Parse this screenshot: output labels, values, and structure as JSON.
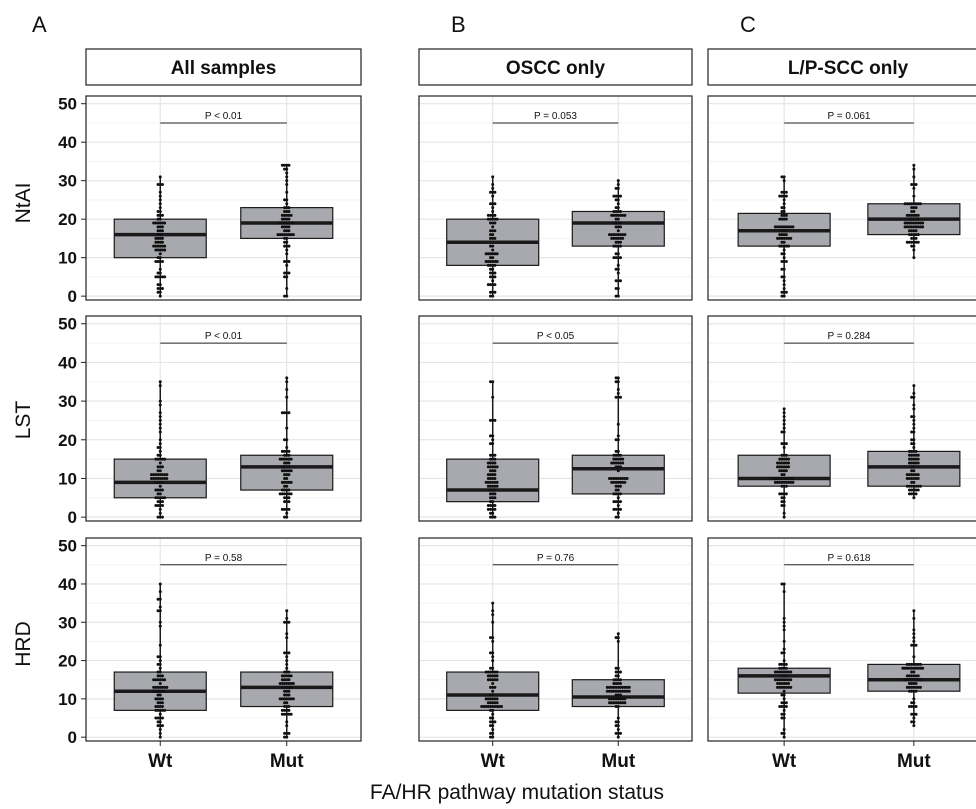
{
  "panel_letters": [
    "A",
    "B",
    "C"
  ],
  "column_titles": [
    "All samples",
    "OSCC only",
    "L/P-SCC only"
  ],
  "row_titles": [
    "NtAI",
    "LST",
    "HRD"
  ],
  "x_axis_title": "FA/HR pathway mutation status",
  "colors": {
    "box_fill": "#a8a9ae",
    "box_stroke": "#1a1a1a",
    "median": "#1a1a1a",
    "points": "#111111",
    "grid_major": "#e6e6e6",
    "grid_minor": "#f3f3f3",
    "panel_border": "#222222"
  },
  "chart_data": {
    "type": "boxplot",
    "categories": [
      "Wt",
      "Mut"
    ],
    "y_ticks": [
      0,
      10,
      20,
      30,
      40,
      50
    ],
    "ylim": [
      -1,
      52
    ],
    "grid": true,
    "panels": [
      {
        "column": "All samples",
        "row": "NtAI",
        "p_value": "P < 0.01",
        "boxes": [
          {
            "category": "Wt",
            "q1": 10,
            "median": 16,
            "q3": 20,
            "min": 0,
            "max": 31
          },
          {
            "category": "Mut",
            "q1": 15,
            "median": 19,
            "q3": 23,
            "min": 0,
            "max": 34
          }
        ]
      },
      {
        "column": "OSCC only",
        "row": "NtAI",
        "p_value": "P = 0.053",
        "boxes": [
          {
            "category": "Wt",
            "q1": 8,
            "median": 14,
            "q3": 20,
            "min": 0,
            "max": 31
          },
          {
            "category": "Mut",
            "q1": 13,
            "median": 19,
            "q3": 22,
            "min": 0,
            "max": 30
          }
        ]
      },
      {
        "column": "L/P-SCC only",
        "row": "NtAI",
        "p_value": "P = 0.061",
        "boxes": [
          {
            "category": "Wt",
            "q1": 13,
            "median": 17,
            "q3": 21.5,
            "min": 0,
            "max": 31
          },
          {
            "category": "Mut",
            "q1": 16,
            "median": 20,
            "q3": 24,
            "min": 10,
            "max": 34
          }
        ]
      },
      {
        "column": "All samples",
        "row": "LST",
        "p_value": "P < 0.01",
        "boxes": [
          {
            "category": "Wt",
            "q1": 5,
            "median": 9,
            "q3": 15,
            "min": 0,
            "max": 35
          },
          {
            "category": "Mut",
            "q1": 7,
            "median": 13,
            "q3": 16,
            "min": 0,
            "max": 36
          }
        ]
      },
      {
        "column": "OSCC only",
        "row": "LST",
        "p_value": "P < 0.05",
        "boxes": [
          {
            "category": "Wt",
            "q1": 4,
            "median": 7,
            "q3": 15,
            "min": 0,
            "max": 35
          },
          {
            "category": "Mut",
            "q1": 6,
            "median": 12.5,
            "q3": 16,
            "min": 0,
            "max": 36
          }
        ]
      },
      {
        "column": "L/P-SCC only",
        "row": "LST",
        "p_value": "P = 0.284",
        "boxes": [
          {
            "category": "Wt",
            "q1": 8,
            "median": 10,
            "q3": 16,
            "min": 0,
            "max": 28
          },
          {
            "category": "Mut",
            "q1": 8,
            "median": 13,
            "q3": 17,
            "min": 5,
            "max": 34
          }
        ]
      },
      {
        "column": "All samples",
        "row": "HRD",
        "p_value": "P = 0.58",
        "boxes": [
          {
            "category": "Wt",
            "q1": 7,
            "median": 12,
            "q3": 17,
            "min": 0,
            "max": 40
          },
          {
            "category": "Mut",
            "q1": 8,
            "median": 13,
            "q3": 17,
            "min": 0,
            "max": 33
          }
        ]
      },
      {
        "column": "OSCC only",
        "row": "HRD",
        "p_value": "P = 0.76",
        "boxes": [
          {
            "category": "Wt",
            "q1": 7,
            "median": 11,
            "q3": 17,
            "min": 0,
            "max": 35
          },
          {
            "category": "Mut",
            "q1": 8,
            "median": 10.5,
            "q3": 15,
            "min": 0,
            "max": 27
          }
        ]
      },
      {
        "column": "L/P-SCC only",
        "row": "HRD",
        "p_value": "P = 0.618",
        "boxes": [
          {
            "category": "Wt",
            "q1": 11.5,
            "median": 16,
            "q3": 18,
            "min": 0,
            "max": 40
          },
          {
            "category": "Mut",
            "q1": 12,
            "median": 15,
            "q3": 19,
            "min": 3,
            "max": 33
          }
        ]
      }
    ]
  }
}
